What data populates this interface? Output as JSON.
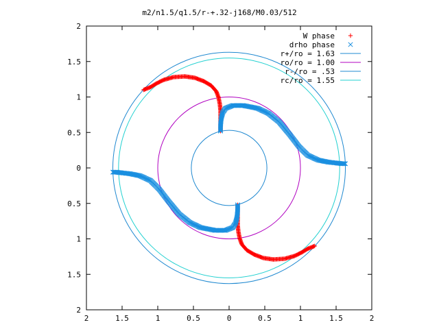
{
  "chart_data": {
    "type": "scatter",
    "title": "m2/n1.5/q1.5/r-+.32-j168/M0.03/512",
    "xlim": [
      -2,
      2
    ],
    "ylim": [
      -2,
      2
    ],
    "x_ticks": [
      "2",
      "1.5",
      "1",
      "0.5",
      "0",
      "0.5",
      "1",
      "1.5",
      "2"
    ],
    "y_ticks": [
      "2",
      "1.5",
      "1",
      "0.5",
      "0",
      "0.5",
      "1",
      "1.5",
      "2"
    ],
    "legend_position": "top-right",
    "grid": false,
    "series": [
      {
        "name": "W phase",
        "marker": "plus",
        "color": "#ff0000",
        "arm_points": [
          [
            -0.12,
            0.52
          ],
          [
            -0.12,
            0.6
          ],
          [
            -0.12,
            0.7
          ],
          [
            -0.12,
            0.8
          ],
          [
            -0.13,
            0.9
          ],
          [
            -0.15,
            1.0
          ],
          [
            -0.18,
            1.08
          ],
          [
            -0.25,
            1.16
          ],
          [
            -0.35,
            1.22
          ],
          [
            -0.48,
            1.27
          ],
          [
            -0.62,
            1.29
          ],
          [
            -0.78,
            1.28
          ],
          [
            -0.92,
            1.24
          ],
          [
            -1.02,
            1.19
          ],
          [
            -1.1,
            1.14
          ],
          [
            -1.2,
            1.1
          ]
        ]
      },
      {
        "name": "drho phase",
        "marker": "cross",
        "color": "#1a8fe0",
        "arm_points": [
          [
            -0.12,
            0.52
          ],
          [
            -0.12,
            0.6
          ],
          [
            -0.11,
            0.7
          ],
          [
            -0.09,
            0.78
          ],
          [
            -0.05,
            0.84
          ],
          [
            0.05,
            0.88
          ],
          [
            0.2,
            0.88
          ],
          [
            0.4,
            0.84
          ],
          [
            0.55,
            0.77
          ],
          [
            0.7,
            0.65
          ],
          [
            0.85,
            0.47
          ],
          [
            0.98,
            0.3
          ],
          [
            1.1,
            0.18
          ],
          [
            1.25,
            0.11
          ],
          [
            1.4,
            0.08
          ],
          [
            1.5,
            0.07
          ],
          [
            1.58,
            0.06
          ],
          [
            1.63,
            0.06
          ]
        ]
      }
    ],
    "circles": [
      {
        "name": "r+/ro = 1.63",
        "r": 1.63,
        "color": "#1e88d0"
      },
      {
        "name": "ro/ro = 1.00",
        "r": 1.0,
        "color": "#b000c0"
      },
      {
        "name": "r-/ro = .53",
        "r": 0.53,
        "color": "#1e88d0"
      },
      {
        "name": "rc/ro = 1.55",
        "r": 1.55,
        "color": "#20d0d0"
      }
    ]
  }
}
